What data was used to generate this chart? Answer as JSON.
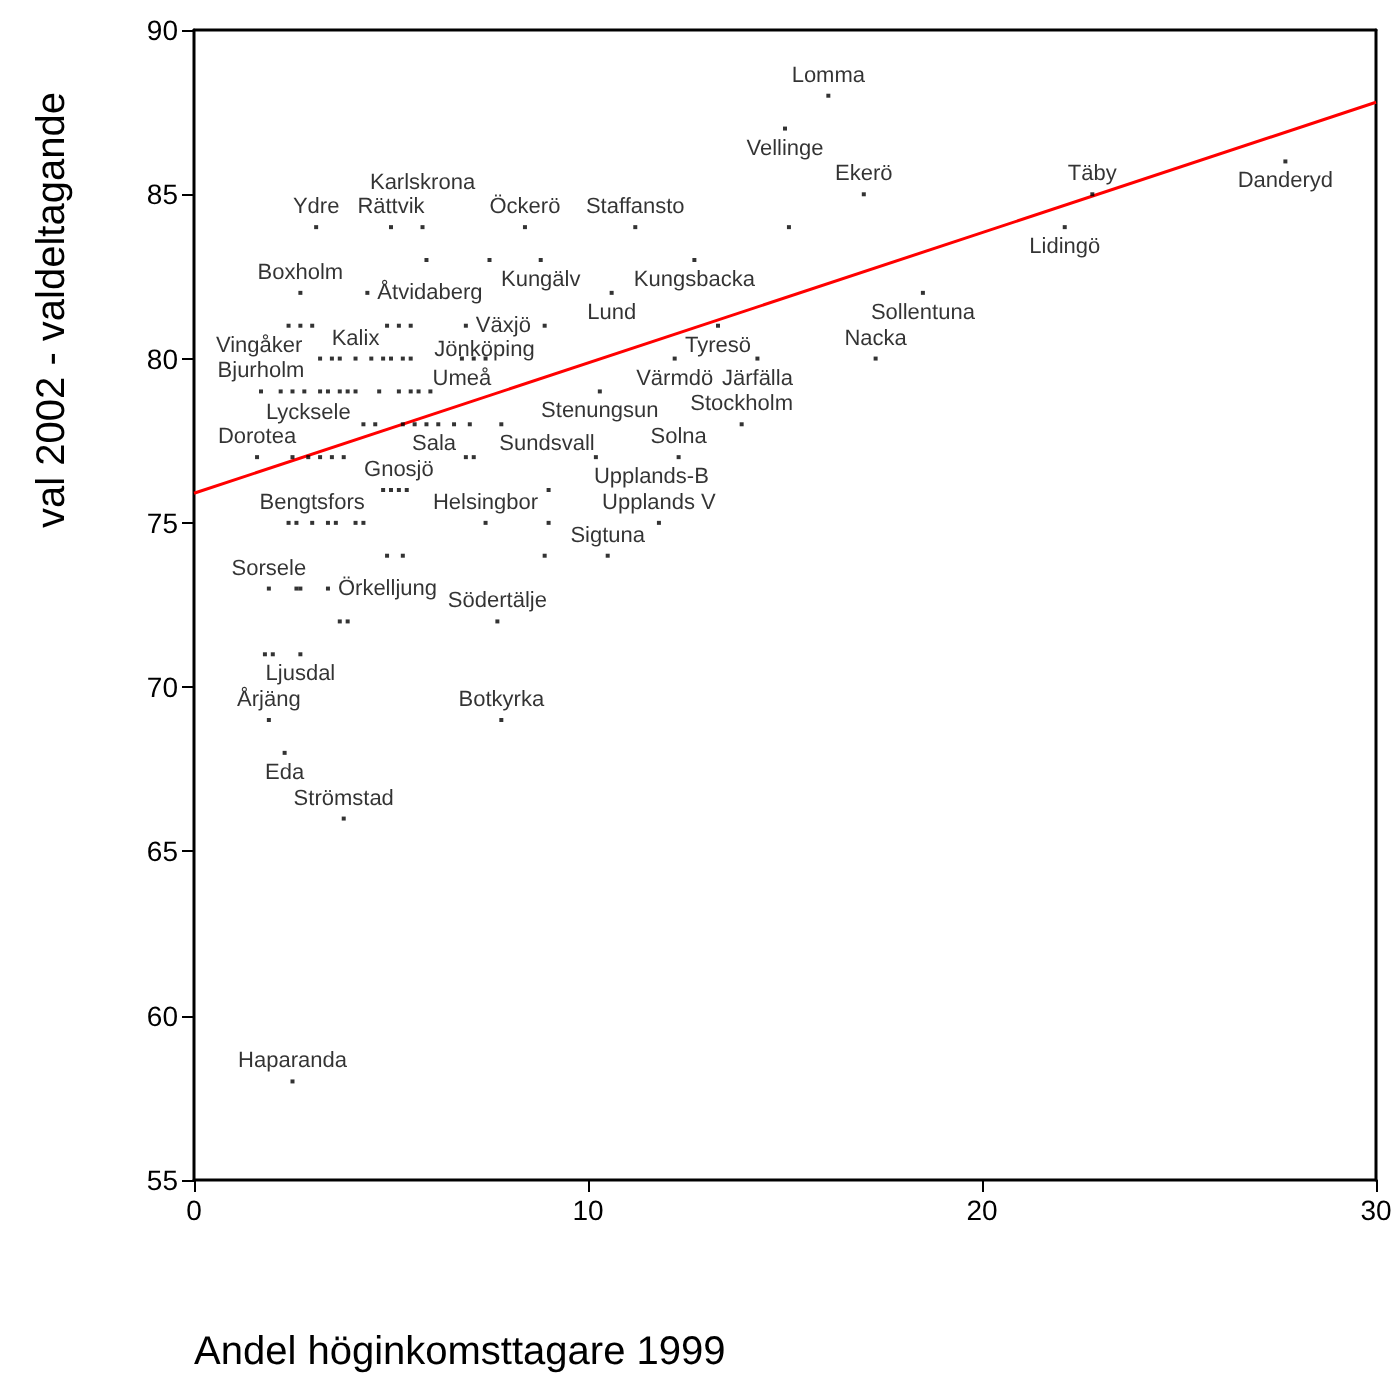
{
  "chart_data": {
    "type": "scatter",
    "xlabel": "Andel höginkomsttagare 1999",
    "ylabel": "val 2002 - valdeltagande",
    "xlim": [
      0,
      30
    ],
    "xticks": [
      0,
      10,
      20,
      30
    ],
    "ylim": [
      55,
      90
    ],
    "yticks": [
      55,
      60,
      65,
      70,
      75,
      80,
      85,
      90
    ],
    "grid": false,
    "series": [
      {
        "marker": "square",
        "color": "#000000",
        "x": [
          16.1,
          15.0,
          27.7,
          17.0,
          22.8,
          22.1,
          3.1,
          5.0,
          5.8,
          8.4,
          11.2,
          8.8,
          12.7,
          2.7,
          4.4,
          10.6,
          18.5,
          2.7,
          6.9,
          8.9,
          13.3,
          4.1,
          6.8,
          12.2,
          14.3,
          17.3,
          1.7,
          10.3,
          1.6,
          2.9,
          6.6,
          7.8,
          13.9,
          10.2,
          12.3,
          5.2,
          3.0,
          7.4,
          11.8,
          10.5,
          1.9,
          3.4,
          7.7,
          2.7,
          1.9,
          7.8,
          2.3,
          3.8,
          2.5,
          15.1,
          5.9,
          7.5,
          2.4,
          3.0,
          4.9,
          5.2,
          5.5,
          3.2,
          3.5,
          3.7,
          4.5,
          4.8,
          5.0,
          5.3,
          5.5,
          7.1,
          7.4,
          2.2,
          2.5,
          2.8,
          3.2,
          3.4,
          3.7,
          3.9,
          4.1,
          4.7,
          5.2,
          5.5,
          5.7,
          6.0,
          4.3,
          4.6,
          5.3,
          5.6,
          5.9,
          6.2,
          7.0,
          2.5,
          3.2,
          3.5,
          3.8,
          6.9,
          7.1,
          4.8,
          5.0,
          5.4,
          9.0,
          2.4,
          2.6,
          3.4,
          3.6,
          4.1,
          4.3,
          9.0,
          4.9,
          5.3,
          8.9,
          2.6,
          2.7,
          3.7,
          3.9,
          1.8,
          2.0
        ],
        "values": [
          88,
          87,
          86,
          85,
          85,
          84,
          84,
          84,
          84,
          84,
          84,
          83,
          83,
          82,
          82,
          82,
          82,
          81,
          81,
          81,
          81,
          80,
          80,
          80,
          80,
          80,
          79,
          79,
          77,
          77,
          78,
          78,
          78,
          77,
          77,
          76,
          75,
          75,
          75,
          74,
          73,
          73,
          72,
          71,
          69,
          69,
          68,
          66,
          58,
          84,
          83,
          83,
          81,
          81,
          81,
          81,
          81,
          80,
          80,
          80,
          80,
          80,
          80,
          80,
          80,
          80,
          80,
          79,
          79,
          79,
          79,
          79,
          79,
          79,
          79,
          79,
          79,
          79,
          79,
          79,
          78,
          78,
          78,
          78,
          78,
          78,
          78,
          77,
          77,
          77,
          77,
          77,
          77,
          76,
          76,
          76,
          76,
          75,
          75,
          75,
          75,
          75,
          75,
          75,
          74,
          74,
          74,
          73,
          73,
          72,
          72,
          71,
          71
        ],
        "value_labels": [
          "Lomma",
          "Vellinge",
          "Danderyd",
          "Ekerö",
          "Täby",
          "Lidingö",
          "Ydre",
          "Rättvik",
          "Karlskrona",
          "Öckerö",
          "Staffansto",
          "Kungälv",
          "Kungsbacka",
          "Boxholm",
          "Åtvidaberg",
          "Lund",
          "Sollentuna",
          "Vingåker",
          "Växjö",
          "Jönköping",
          "Tyresö",
          "Kalix",
          "Umeå",
          "Värmdö",
          "Järfälla",
          "Nacka",
          "Bjurholm",
          "Stenungsun",
          "Dorotea",
          "Lycksele",
          "Sala",
          "Sundsvall",
          "Stockholm",
          "Upplands-B",
          "Solna",
          "Gnosjö",
          "Bengtsfors",
          "Helsingbor",
          "Upplands V",
          "Sigtuna",
          "Sorsele",
          "Örkelljung",
          "Södertälje",
          "Ljusdal",
          "Årjäng",
          "Botkyrka",
          "Eda",
          "Strömstad",
          "Haparanda",
          null,
          null,
          null,
          null,
          null,
          null,
          null,
          null,
          null,
          null,
          null,
          null,
          null,
          null,
          null,
          null,
          null,
          null,
          null,
          null,
          null,
          null,
          null,
          null,
          null,
          null,
          null,
          null,
          null,
          null,
          null,
          null,
          null,
          null,
          null,
          null,
          null,
          null,
          null,
          null,
          null,
          null,
          null,
          null,
          null,
          null,
          null,
          null,
          null,
          null,
          null,
          null,
          null,
          null,
          null,
          null,
          null,
          null,
          null,
          null,
          null,
          null,
          null,
          null
        ]
      },
      {
        "type": "line",
        "marker": "none",
        "color": "#ff0000",
        "x": [
          0,
          30
        ],
        "values": [
          75.9,
          87.8
        ]
      }
    ]
  }
}
